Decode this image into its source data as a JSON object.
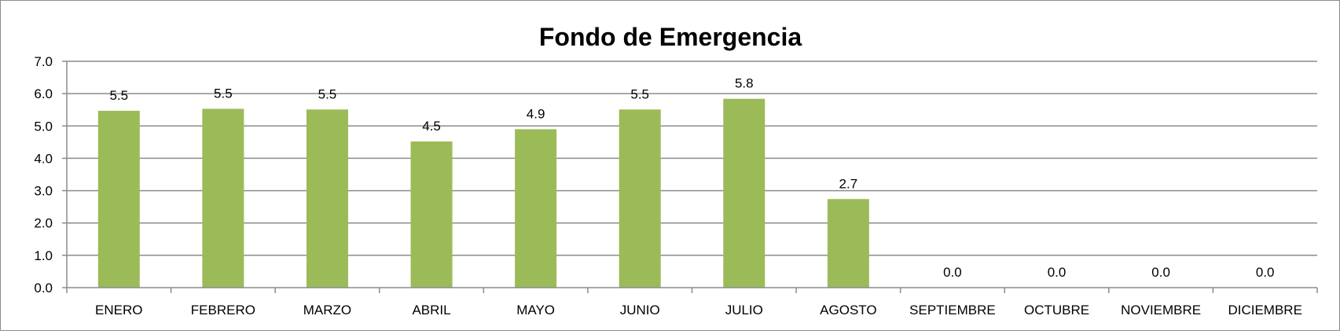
{
  "chart_data": {
    "type": "bar",
    "title": "Fondo de Emergencia",
    "xlabel": "",
    "ylabel": "",
    "categories": [
      "ENERO",
      "FEBRERO",
      "MARZO",
      "ABRIL",
      "MAYO",
      "JUNIO",
      "JULIO",
      "AGOSTO",
      "SEPTIEMBRE",
      "OCTUBRE",
      "NOVIEMBRE",
      "DICIEMBRE"
    ],
    "values": [
      5.47,
      5.53,
      5.51,
      4.52,
      4.9,
      5.51,
      5.84,
      2.74,
      0,
      0,
      0,
      0
    ],
    "data_labels": [
      "5.5",
      "5.5",
      "5.5",
      "4.5",
      "4.9",
      "5.5",
      "5.8",
      "2.7",
      "0.0",
      "0.0",
      "0.0",
      "0.0"
    ],
    "yticks": [
      "0.0",
      "1.0",
      "2.0",
      "3.0",
      "4.0",
      "5.0",
      "6.0",
      "7.0"
    ],
    "ylim": [
      0,
      7
    ],
    "grid": true,
    "legend": "none",
    "colors": {
      "bar": "#9bbb59",
      "grid": "#8c8c8c",
      "axis": "#8c8c8c",
      "border": "#8c8c8c"
    }
  }
}
